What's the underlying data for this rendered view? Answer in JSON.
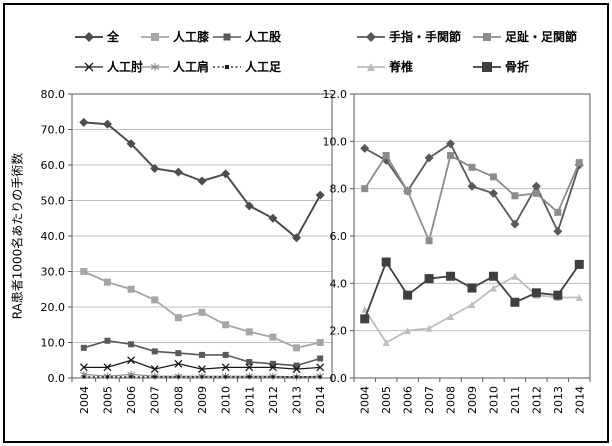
{
  "figure": {
    "y_axis_label": "RA患者1000名あたりの手術数"
  },
  "chart_data": [
    {
      "type": "line",
      "title": "",
      "xlabel": "",
      "ylabel": "RA患者1000名あたりの手術数",
      "categories": [
        "2004",
        "2005",
        "2006",
        "2007",
        "2008",
        "2009",
        "2010",
        "2011",
        "2012",
        "2013",
        "2014"
      ],
      "ylim": [
        0,
        80
      ],
      "ytick_step": 10,
      "ytick_labels": [
        "0.0",
        "10.0",
        "20.0",
        "30.0",
        "40.0",
        "50.0",
        "60.0",
        "70.0",
        "80.0"
      ],
      "grid": true,
      "legend_position": "top",
      "series": [
        {
          "name": "全",
          "values": [
            72,
            71.5,
            66,
            59,
            58,
            55.5,
            57.5,
            48.5,
            45,
            39.5,
            51.5
          ],
          "color": "#4d4d4d",
          "marker": "diamond",
          "marker_size": 4.5,
          "line": "solid",
          "line_width": 2
        },
        {
          "name": "人工膝",
          "values": [
            30,
            27,
            25,
            22,
            17,
            18.5,
            15,
            13,
            11.5,
            8.5,
            10
          ],
          "color": "#a6a6a6",
          "marker": "square",
          "marker_size": 3.5,
          "line": "solid",
          "line_width": 1.8
        },
        {
          "name": "人工股",
          "values": [
            8.5,
            10.5,
            9.5,
            7.5,
            7,
            6.5,
            6.5,
            4.5,
            4,
            3.5,
            5.5
          ],
          "color": "#595959",
          "marker": "square",
          "marker_size": 3,
          "line": "solid",
          "line_width": 1.6
        },
        {
          "name": "人工肘",
          "values": [
            3,
            3,
            5,
            2.5,
            4,
            2.5,
            3,
            3,
            3,
            2.5,
            3
          ],
          "color": "#1a1a1a",
          "marker": "x",
          "marker_size": 3.5,
          "line": "solid",
          "line_width": 1.3
        },
        {
          "name": "人工肩",
          "values": [
            1,
            0.5,
            1,
            0.5,
            0.5,
            0.5,
            0.5,
            0.5,
            0.5,
            0.3,
            0.5
          ],
          "color": "#8c8c8c",
          "marker": "asterisk",
          "marker_size": 3.5,
          "line": "solid",
          "line_width": 1.2
        },
        {
          "name": "人工足",
          "values": [
            0.3,
            0.3,
            0.3,
            0.3,
            0.3,
            0.3,
            0.3,
            0.3,
            0.3,
            0.3,
            0.3
          ],
          "color": "#1a1a1a",
          "marker": "dot",
          "marker_size": 1.5,
          "line": "dotted",
          "line_width": 1.2
        }
      ]
    },
    {
      "type": "line",
      "title": "",
      "xlabel": "",
      "ylabel": "",
      "categories": [
        "2004",
        "2005",
        "2006",
        "2007",
        "2008",
        "2009",
        "2010",
        "2011",
        "2012",
        "2013",
        "2014"
      ],
      "ylim": [
        0,
        12
      ],
      "ytick_step": 2,
      "ytick_labels": [
        "0.0",
        "2.0",
        "4.0",
        "6.0",
        "8.0",
        "10.0",
        "12.0"
      ],
      "grid": true,
      "legend_position": "top",
      "series": [
        {
          "name": "手指・手関節",
          "values": [
            9.7,
            9.2,
            7.9,
            9.3,
            9.9,
            8.1,
            7.8,
            6.5,
            8.1,
            6.2,
            9.0
          ],
          "color": "#595959",
          "marker": "diamond",
          "marker_size": 4.5,
          "line": "solid",
          "line_width": 1.8
        },
        {
          "name": "足趾・足関節",
          "values": [
            8.0,
            9.4,
            7.9,
            5.8,
            9.4,
            8.9,
            8.5,
            7.7,
            7.8,
            7.0,
            9.1
          ],
          "color": "#8c8c8c",
          "marker": "square",
          "marker_size": 3.5,
          "line": "solid",
          "line_width": 1.8
        },
        {
          "name": "脊椎",
          "values": [
            2.9,
            1.5,
            2.0,
            2.1,
            2.6,
            3.1,
            3.8,
            4.3,
            3.5,
            3.4,
            3.4
          ],
          "color": "#bdbdbd",
          "marker": "triangle",
          "marker_size": 3.5,
          "line": "solid",
          "line_width": 1.8
        },
        {
          "name": "骨折",
          "values": [
            2.5,
            4.9,
            3.5,
            4.2,
            4.3,
            3.8,
            4.3,
            3.2,
            3.6,
            3.5,
            4.8
          ],
          "color": "#3f3f3f",
          "marker": "square",
          "marker_size": 4.5,
          "line": "solid",
          "line_width": 1.8
        }
      ]
    }
  ]
}
